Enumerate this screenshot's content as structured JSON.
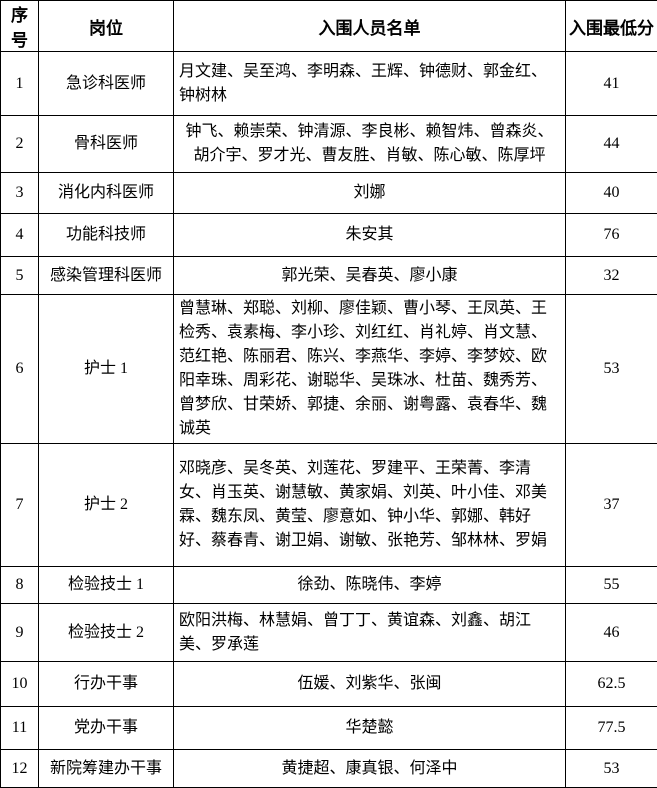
{
  "table": {
    "columns": [
      "序号",
      "岗位",
      "入围人员名单",
      "入围最低分"
    ],
    "rows": [
      {
        "no": "1",
        "position": "急诊科医师",
        "names": "月文建、吴至鸿、李明森、王辉、钟德财、郭金红、钟树林",
        "score": "41"
      },
      {
        "no": "2",
        "position": "骨科医师",
        "names": "钟飞、赖崇荣、钟清源、李良彬、赖智炜、曾森炎、胡介宇、罗才光、曹友胜、肖敏、陈心敏、陈厚坪",
        "score": "44"
      },
      {
        "no": "3",
        "position": "消化内科医师",
        "names": "刘娜",
        "score": "40"
      },
      {
        "no": "4",
        "position": "功能科技师",
        "names": "朱安其",
        "score": "76"
      },
      {
        "no": "5",
        "position": "感染管理科医师",
        "names": "郭光荣、吴春英、廖小康",
        "score": "32"
      },
      {
        "no": "6",
        "position": "护士 1",
        "names": "曾慧琳、郑聪、刘柳、廖佳颖、曹小琴、王凤英、王检秀、袁素梅、李小珍、刘红红、肖礼婷、肖文慧、范红艳、陈丽君、陈兴、李燕华、李婷、李梦姣、欧阳幸珠、周彩花、谢聪华、吴珠冰、杜苗、魏秀芳、曾梦欣、甘荣娇、郭捷、余丽、谢粤露、袁春华、魏诚英",
        "score": "53"
      },
      {
        "no": "7",
        "position": "护士 2",
        "names": "邓晓彦、吴冬英、刘莲花、罗建平、王荣菁、李清女、肖玉英、谢慧敏、黄家娟、刘英、叶小佳、邓美霖、魏东凤、黄莹、廖意如、钟小华、郭娜、韩好好、蔡春青、谢卫娟、谢敏、张艳芳、邹林林、罗娟",
        "score": "37"
      },
      {
        "no": "8",
        "position": "检验技士 1",
        "names": "徐劲、陈晓伟、李婷",
        "score": "55"
      },
      {
        "no": "9",
        "position": "检验技士 2",
        "names": "欧阳洪梅、林慧娟、曾丁丁、黄谊森、刘鑫、胡江美、罗承莲",
        "score": "46"
      },
      {
        "no": "10",
        "position": "行办干事",
        "names": "伍媛、刘紫华、张闽",
        "score": "62.5"
      },
      {
        "no": "11",
        "position": "党办干事",
        "names": "华楚懿",
        "score": "77.5"
      },
      {
        "no": "12",
        "position": "新院筹建办干事",
        "names": "黄捷超、康真银、何泽中",
        "score": "53"
      }
    ]
  }
}
